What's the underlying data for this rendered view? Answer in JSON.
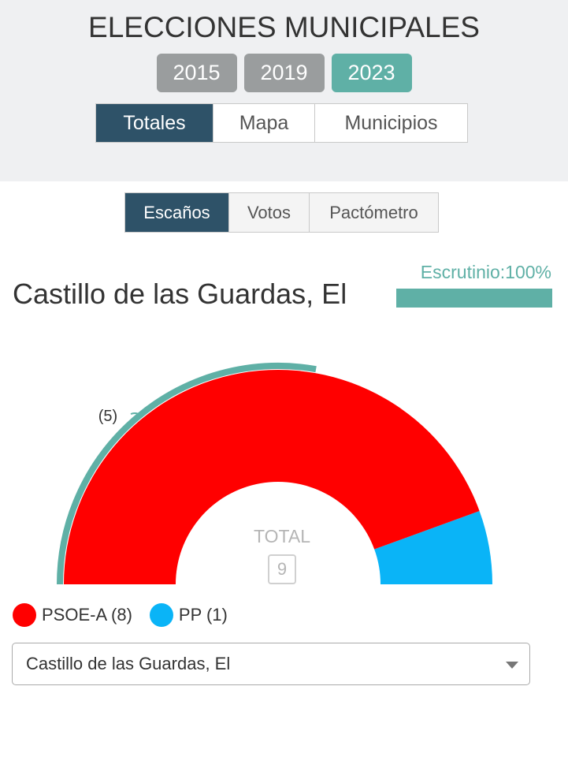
{
  "header": {
    "title": "ELECCIONES MUNICIPALES",
    "years": [
      {
        "label": "2015",
        "active": false
      },
      {
        "label": "2019",
        "active": false
      },
      {
        "label": "2023",
        "active": true
      }
    ],
    "view_tabs": [
      {
        "label": "Totales",
        "active": true
      },
      {
        "label": "Mapa",
        "active": false
      },
      {
        "label": "Municipios",
        "active": false
      }
    ]
  },
  "sub_tabs": [
    {
      "label": "Escaños",
      "active": true
    },
    {
      "label": "Votos",
      "active": false
    },
    {
      "label": "Pactómetro",
      "active": false
    }
  ],
  "municipality": "Castillo de las Guardas, El",
  "escrutinio": {
    "label": "Escrutinio:100%",
    "percent": 100
  },
  "chart_data": {
    "type": "pie",
    "categories": [
      "PSOE-A",
      "PP"
    ],
    "values": [
      8,
      1
    ],
    "colors": [
      "#ff0000",
      "#0ab4f7"
    ],
    "total_label": "TOTAL",
    "total": "9",
    "majority_label": "(5)",
    "majority_color": "#5fb0a6"
  },
  "legend": [
    {
      "label": "PSOE-A (8)",
      "color": "#ff0000"
    },
    {
      "label": "PP (1)",
      "color": "#0ab4f7"
    }
  ],
  "select": {
    "value": "Castillo de las Guardas, El"
  }
}
